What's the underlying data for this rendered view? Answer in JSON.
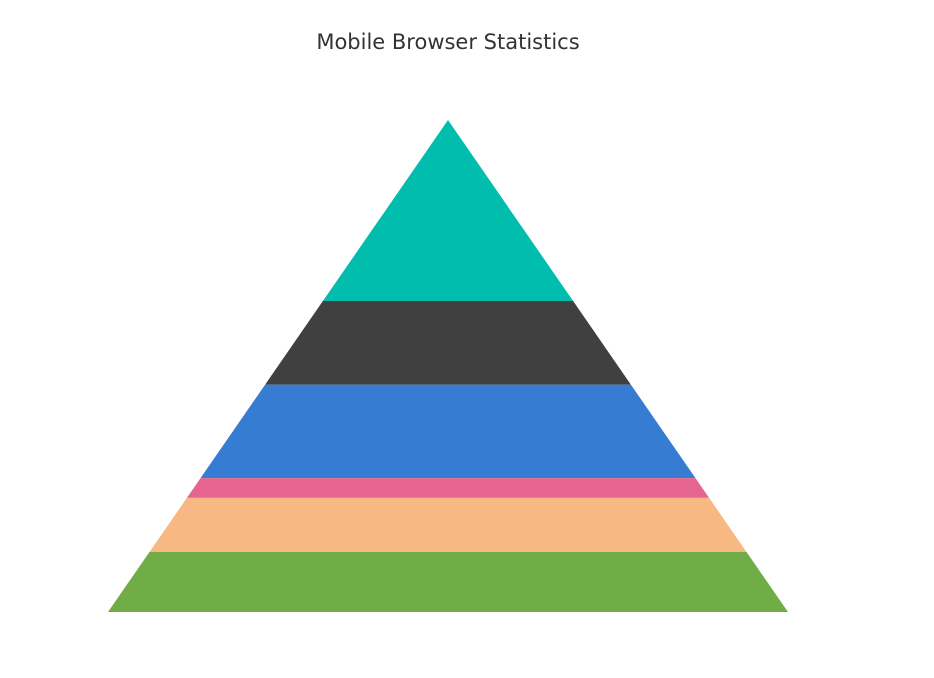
{
  "chart_data": {
    "type": "pyramid",
    "title": "Mobile Browser Statistics",
    "series": [
      {
        "name": "",
        "points": [
          {
            "value": 36.8,
            "color": "#00bdae"
          },
          {
            "value": 17.0,
            "color": "#404041"
          },
          {
            "value": 19.0,
            "color": "#357cd2"
          },
          {
            "value": 4.0,
            "color": "#e56590"
          },
          {
            "value": 11.0,
            "color": "#f8b883"
          },
          {
            "value": 12.2,
            "color": "#70ad47"
          }
        ]
      }
    ]
  }
}
